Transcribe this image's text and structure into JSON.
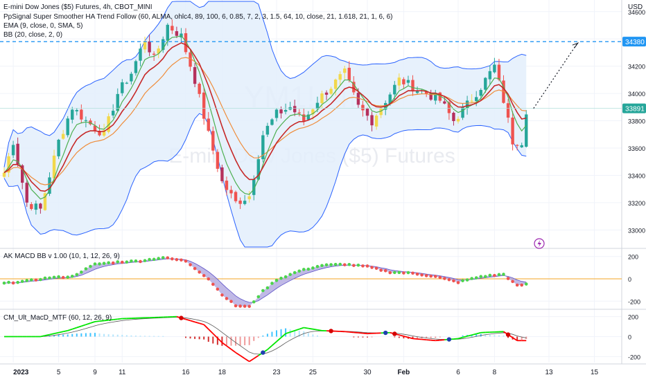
{
  "chart_data": [
    {
      "type": "candlestick",
      "panel": "main",
      "legend_lines": [
        "E-mini Dow Jones ($5) Futures, 4h, CBOT_MINI",
        "PpSignal Super Smoother HA Trend Follow (60, ALMA, ohlc4, 89, 100, 6, 0.85, 7, 2, 3, 1.5, 64, 10, close, 21, 1.618, 21, 1, 6, 6)",
        "EMA (9, close, 0, SMA, 5)",
        "BB (20, close, 2, 0)"
      ],
      "watermark_symbol": "YM1!, 4h",
      "watermark_name": "E-mini Dow Jones ($5) Futures",
      "currency": "USD",
      "y_ticks": [
        34600,
        34400,
        34200,
        34000,
        33800,
        33600,
        33400,
        33200,
        33000
      ],
      "ylim": [
        32880,
        34680
      ],
      "resistance_level": 34380,
      "resistance_label": "34380",
      "last_price": 33891,
      "last_price_label": "33891",
      "projection_target": 34380,
      "x_ticks": [
        "2023",
        "5",
        "9",
        "11",
        "16",
        "18",
        "23",
        "25",
        "30",
        "Feb",
        "6",
        "8",
        "13",
        "15"
      ],
      "anchors": [
        [
          0,
          33420
        ],
        [
          2,
          33650
        ],
        [
          5,
          33200
        ],
        [
          8,
          33150
        ],
        [
          12,
          33650
        ],
        [
          15,
          33900
        ],
        [
          18,
          33800
        ],
        [
          22,
          33700
        ],
        [
          25,
          34000
        ],
        [
          28,
          34150
        ],
        [
          31,
          34400
        ],
        [
          33,
          34250
        ],
        [
          36,
          34500
        ],
        [
          39,
          34420
        ],
        [
          42,
          34100
        ],
        [
          45,
          33700
        ],
        [
          48,
          33350
        ],
        [
          51,
          33200
        ],
        [
          54,
          33250
        ],
        [
          57,
          33700
        ],
        [
          60,
          33850
        ],
        [
          63,
          33900
        ],
        [
          66,
          33800
        ],
        [
          69,
          33950
        ],
        [
          72,
          34050
        ],
        [
          75,
          34150
        ],
        [
          78,
          33900
        ],
        [
          81,
          33800
        ],
        [
          84,
          33950
        ],
        [
          87,
          34100
        ],
        [
          90,
          34050
        ],
        [
          93,
          34000
        ],
        [
          96,
          33950
        ],
        [
          99,
          33800
        ],
        [
          102,
          33920
        ],
        [
          105,
          34050
        ],
        [
          108,
          34200
        ],
        [
          110,
          33950
        ],
        [
          112,
          33650
        ],
        [
          114,
          33650
        ],
        [
          115,
          33880
        ]
      ],
      "colors": {
        "bull": "#26a69a",
        "bull_alt": "#f2d84b",
        "bear": "#ef5350",
        "bear_alt": "#b5305c",
        "bb": "#2962ff",
        "bb_fill": "#e3effc",
        "ema": "#4caf50",
        "smoother": "#c62828",
        "slow": "#ef8c3a",
        "level": "#2196f3",
        "price_tag": "#26a69a"
      }
    },
    {
      "type": "macd-dots",
      "panel": "AK MACD BB",
      "legend": "AK MACD BB v 1.00 (10, 1, 12, 26, 9)",
      "y_ticks": [
        200,
        0,
        -200
      ],
      "ylim": [
        -260,
        260
      ],
      "anchors": [
        [
          0,
          -40
        ],
        [
          5,
          -20
        ],
        [
          10,
          10
        ],
        [
          15,
          20
        ],
        [
          20,
          130
        ],
        [
          25,
          150
        ],
        [
          30,
          160
        ],
        [
          35,
          190
        ],
        [
          40,
          160
        ],
        [
          45,
          0
        ],
        [
          48,
          -140
        ],
        [
          51,
          -240
        ],
        [
          54,
          -250
        ],
        [
          57,
          -110
        ],
        [
          60,
          -10
        ],
        [
          65,
          70
        ],
        [
          70,
          120
        ],
        [
          75,
          130
        ],
        [
          80,
          110
        ],
        [
          85,
          60
        ],
        [
          90,
          50
        ],
        [
          95,
          20
        ],
        [
          100,
          -30
        ],
        [
          105,
          20
        ],
        [
          110,
          40
        ],
        [
          113,
          -60
        ],
        [
          115,
          -50
        ]
      ],
      "colors": {
        "up": "#4cd44c",
        "down": "#ef5350",
        "band_fill": "#b0a8e0",
        "band_line": "#5b4fc7",
        "zero": "#f5a623"
      }
    },
    {
      "type": "macd-histogram",
      "panel": "CM_Ult_MacD_MTF",
      "legend": "CM_Ult_MacD_MTF (60, 12, 26, 9)",
      "y_ticks": [
        200,
        0,
        -200
      ],
      "ylim": [
        -260,
        260
      ],
      "anchors": [
        [
          0,
          0
        ],
        [
          8,
          0
        ],
        [
          14,
          60
        ],
        [
          20,
          150
        ],
        [
          26,
          180
        ],
        [
          32,
          190
        ],
        [
          38,
          200
        ],
        [
          44,
          120
        ],
        [
          48,
          -60
        ],
        [
          51,
          -160
        ],
        [
          54,
          -250
        ],
        [
          58,
          -130
        ],
        [
          62,
          30
        ],
        [
          66,
          90
        ],
        [
          70,
          60
        ],
        [
          75,
          50
        ],
        [
          80,
          30
        ],
        [
          85,
          40
        ],
        [
          90,
          -20
        ],
        [
          95,
          -40
        ],
        [
          100,
          -20
        ],
        [
          105,
          40
        ],
        [
          110,
          50
        ],
        [
          113,
          -40
        ],
        [
          115,
          -40
        ]
      ],
      "colors": {
        "macd_up": "#00e600",
        "macd_down": "#ff0000",
        "signal": "#555555",
        "hist_pos": "#40c4ff",
        "hist_pos_weak": "#b3e5fc",
        "hist_neg": "#d32f2f",
        "hist_neg_weak": "#ef9a9a",
        "cross_up": "#1e40af",
        "cross_down": "#d50000"
      }
    }
  ]
}
